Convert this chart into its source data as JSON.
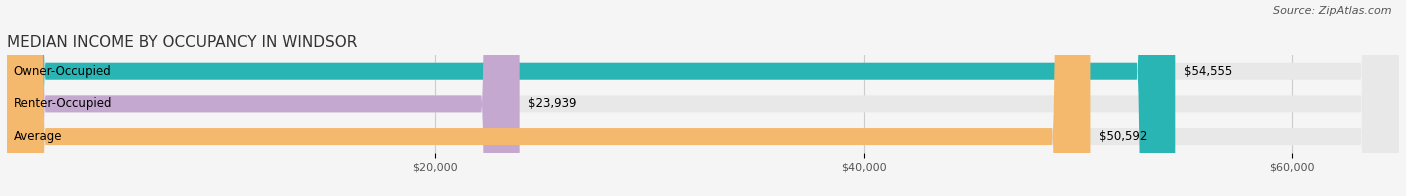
{
  "title": "MEDIAN INCOME BY OCCUPANCY IN WINDSOR",
  "source": "Source: ZipAtlas.com",
  "categories": [
    "Owner-Occupied",
    "Renter-Occupied",
    "Average"
  ],
  "values": [
    54555,
    23939,
    50592
  ],
  "labels": [
    "$54,555",
    "$23,939",
    "$50,592"
  ],
  "bar_colors": [
    "#2ab5b5",
    "#c4a8d0",
    "#f5b96e"
  ],
  "bg_bar_color": "#e8e8e8",
  "xmax": 65000,
  "xticks": [
    20000,
    40000,
    60000
  ],
  "xtick_labels": [
    "$20,000",
    "$40,000",
    "$60,000"
  ],
  "title_fontsize": 11,
  "source_fontsize": 8,
  "label_fontsize": 8.5,
  "cat_fontsize": 8.5,
  "bar_height": 0.52,
  "figsize": [
    14.06,
    1.96
  ],
  "dpi": 100
}
